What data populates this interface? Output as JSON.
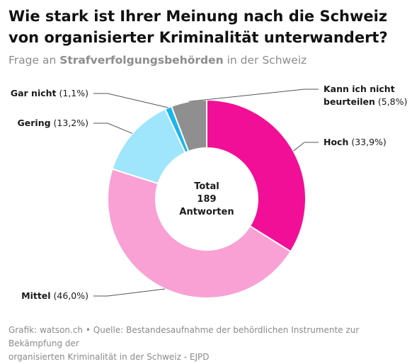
{
  "title": "Wie stark ist Ihrer Meinung nach die Schweiz von organisierter Kriminalität unterwandert?",
  "subtitle": {
    "prefix": "Frage an ",
    "bold": "Strafverfolgungsbehörden",
    "suffix": " in der Schweiz"
  },
  "center": {
    "line1": "Total",
    "line2": "189",
    "line3": "Antworten"
  },
  "footer": {
    "line1": "Grafik: watson.ch • Quelle: Bestandesaufnahme der behördlichen Instrumente zur Bekämpfung der",
    "line2": "organisierten Kriminalität in der Schweiz - EJPD"
  },
  "chart_data": {
    "type": "pie",
    "donut": true,
    "title": "Wie stark ist Ihrer Meinung nach die Schweiz von organisierter Kriminalität unterwandert?",
    "subtitle": "Frage an Strafverfolgungsbehörden in der Schweiz",
    "total": 189,
    "slices": [
      {
        "label": "Hoch",
        "value": 33.9,
        "display": "Hoch (33,9%)",
        "color": "#f20f97"
      },
      {
        "label": "Mittel",
        "value": 46.0,
        "display": "Mittel (46,0%)",
        "color": "#f9a1d4"
      },
      {
        "label": "Gering",
        "value": 13.2,
        "display": "Gering (13,2%)",
        "color": "#9fe5fc"
      },
      {
        "label": "Gar nicht",
        "value": 1.1,
        "display": "Gar nicht (1,1%)",
        "color": "#1ab6ee"
      },
      {
        "label": "Kann ich nicht beurteilen",
        "value": 5.8,
        "display_lines": [
          "Kann ich nicht",
          "beurteilen (5,8%)"
        ],
        "color": "#8f8f8f"
      }
    ]
  }
}
